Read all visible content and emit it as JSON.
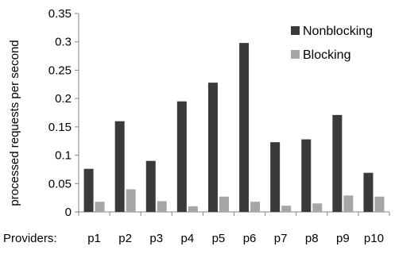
{
  "chart_data": {
    "type": "bar",
    "title": "",
    "xlabel": "Providers:",
    "ylabel": "processed requests per second",
    "categories": [
      "p1",
      "p2",
      "p3",
      "p4",
      "p5",
      "p6",
      "p7",
      "p8",
      "p9",
      "p10"
    ],
    "series": [
      {
        "name": "Nonblocking",
        "color": "#3a3a3a",
        "values": [
          0.076,
          0.16,
          0.09,
          0.195,
          0.228,
          0.298,
          0.123,
          0.128,
          0.171,
          0.069
        ]
      },
      {
        "name": "Blocking",
        "color": "#a6a6a6",
        "values": [
          0.018,
          0.04,
          0.019,
          0.01,
          0.027,
          0.018,
          0.011,
          0.015,
          0.029,
          0.027
        ]
      }
    ],
    "y_ticks": [
      "0",
      "0.05",
      "0.1",
      "0.15",
      "0.2",
      "0.25",
      "0.3",
      "0.35"
    ],
    "ylim": [
      0,
      0.35
    ],
    "grid": false,
    "legend_position": "top-right"
  }
}
